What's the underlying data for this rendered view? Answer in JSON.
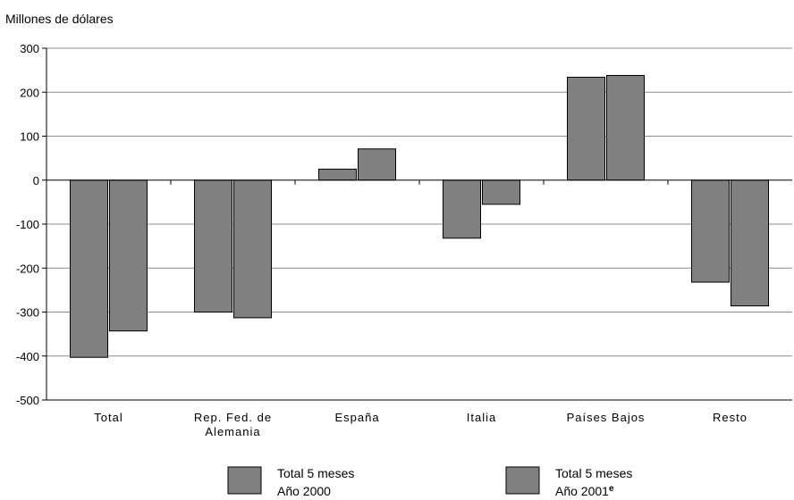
{
  "chart_data": {
    "type": "bar",
    "ylabel": "Millones de dólares",
    "ylim": [
      -500,
      300
    ],
    "yticks": [
      300,
      200,
      100,
      0,
      -100,
      -200,
      -300,
      -400,
      -500
    ],
    "grid": true,
    "categories": [
      [
        "Total"
      ],
      [
        "Rep. Fed. de",
        "Alemania"
      ],
      [
        "España"
      ],
      [
        "Italia"
      ],
      [
        "Países Bajos"
      ],
      [
        "Resto"
      ]
    ],
    "series": [
      {
        "name_lines": [
          "Total 5 meses",
          "Año 2000"
        ],
        "color": "#808080",
        "values": [
          -403,
          -300,
          25,
          -132,
          234,
          -232
        ]
      },
      {
        "name_lines": [
          "Total 5 meses",
          "Año 2001"
        ],
        "name_superscript": "e",
        "color": "#808080",
        "values": [
          -343,
          -313,
          71,
          -55,
          238,
          -286
        ]
      }
    ],
    "legend_position": "bottom"
  }
}
